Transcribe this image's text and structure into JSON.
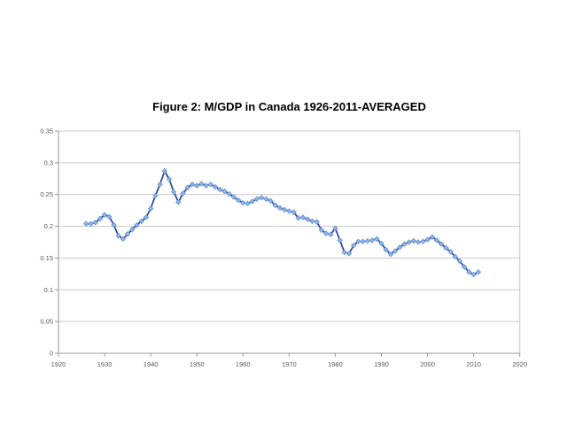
{
  "page": {
    "background": "#ffffff"
  },
  "chart_data": {
    "type": "line",
    "title": "Figure 2: M/GDP in Canada 1926-2011-AVERAGED",
    "xlabel": "",
    "ylabel": "",
    "xlim": [
      1920,
      2020
    ],
    "ylim": [
      0,
      0.35
    ],
    "x_ticks": [
      1920,
      1930,
      1940,
      1950,
      1960,
      1970,
      1980,
      1990,
      2000,
      2010,
      2020
    ],
    "x_tick_labels": [
      "1920",
      "1930",
      "1940",
      "1950",
      "1960",
      "1970",
      "1980",
      "1990",
      "2000",
      "2010",
      "2020"
    ],
    "y_ticks": [
      0,
      0.05,
      0.1,
      0.15,
      0.2,
      0.25,
      0.3,
      0.35
    ],
    "y_tick_labels": [
      "0",
      "0.05",
      "0.1",
      "0.15",
      "0.2",
      "0.25",
      "0.3",
      "0.35"
    ],
    "grid": true,
    "legend_position": "none",
    "series": [
      {
        "name": "M/GDP",
        "marker": "diamond",
        "x": [
          1926,
          1927,
          1928,
          1929,
          1930,
          1931,
          1932,
          1933,
          1934,
          1935,
          1936,
          1937,
          1938,
          1939,
          1940,
          1941,
          1942,
          1943,
          1944,
          1945,
          1946,
          1947,
          1948,
          1949,
          1950,
          1951,
          1952,
          1953,
          1954,
          1955,
          1956,
          1957,
          1958,
          1959,
          1960,
          1961,
          1962,
          1963,
          1964,
          1965,
          1966,
          1967,
          1968,
          1969,
          1970,
          1971,
          1972,
          1973,
          1974,
          1975,
          1976,
          1977,
          1978,
          1979,
          1980,
          1981,
          1982,
          1983,
          1984,
          1985,
          1986,
          1987,
          1988,
          1989,
          1990,
          1991,
          1992,
          1993,
          1994,
          1995,
          1996,
          1997,
          1998,
          1999,
          2000,
          2001,
          2002,
          2003,
          2004,
          2005,
          2006,
          2007,
          2008,
          2009,
          2010,
          2011
        ],
        "values": [
          0.204,
          0.204,
          0.206,
          0.212,
          0.218,
          0.215,
          0.202,
          0.185,
          0.18,
          0.188,
          0.195,
          0.202,
          0.208,
          0.214,
          0.228,
          0.248,
          0.266,
          0.287,
          0.274,
          0.254,
          0.238,
          0.252,
          0.261,
          0.266,
          0.264,
          0.267,
          0.264,
          0.266,
          0.262,
          0.258,
          0.255,
          0.251,
          0.246,
          0.241,
          0.237,
          0.236,
          0.239,
          0.243,
          0.245,
          0.243,
          0.24,
          0.233,
          0.229,
          0.226,
          0.224,
          0.222,
          0.213,
          0.214,
          0.211,
          0.208,
          0.207,
          0.194,
          0.189,
          0.187,
          0.197,
          0.178,
          0.159,
          0.157,
          0.17,
          0.176,
          0.176,
          0.177,
          0.178,
          0.18,
          0.173,
          0.163,
          0.156,
          0.161,
          0.167,
          0.172,
          0.175,
          0.177,
          0.175,
          0.176,
          0.179,
          0.183,
          0.178,
          0.172,
          0.166,
          0.16,
          0.152,
          0.145,
          0.136,
          0.128,
          0.124,
          0.128
        ]
      }
    ]
  },
  "colors": {
    "line": "#2F4DA0",
    "marker_fill": "#8EB4E3",
    "marker_stroke": "#6D96D2",
    "gridline": "#C9C9C9",
    "axis": "#9A9A9A",
    "tick_label": "#595959",
    "title": "#000000",
    "background": "#FFFFFF"
  }
}
